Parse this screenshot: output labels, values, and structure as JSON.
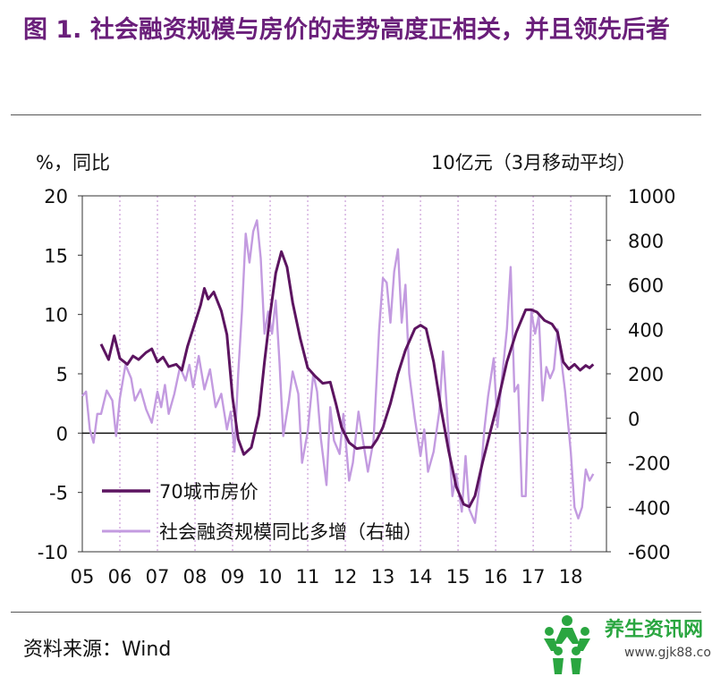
{
  "header": {
    "title": "图 1. 社会融资规模与房价的走势高度正相关，并且领先后者"
  },
  "chart_data": {
    "type": "line",
    "left_unit": "%，同比",
    "right_unit": "10亿元（3月移动平均）",
    "x_ticks": [
      "05",
      "06",
      "07",
      "08",
      "09",
      "10",
      "11",
      "12",
      "13",
      "14",
      "15",
      "16",
      "17",
      "18"
    ],
    "y_left": {
      "min": -10,
      "max": 20,
      "ticks": [
        -10,
        -5,
        0,
        5,
        10,
        15,
        20
      ]
    },
    "y_right": {
      "min": -600,
      "max": 1000,
      "ticks": [
        -600,
        -400,
        -200,
        0,
        200,
        400,
        600,
        800,
        1000
      ]
    },
    "grid": "vertical dotted at each year",
    "legend": {
      "position": "bottom-left"
    },
    "series": [
      {
        "name": "70城市房价",
        "axis": "left",
        "color": "#5c1460",
        "points": [
          [
            2005.5,
            7.5
          ],
          [
            2005.7,
            6.2
          ],
          [
            2005.85,
            8.2
          ],
          [
            2006.0,
            6.3
          ],
          [
            2006.2,
            5.8
          ],
          [
            2006.35,
            6.5
          ],
          [
            2006.5,
            6.2
          ],
          [
            2006.7,
            6.8
          ],
          [
            2006.85,
            7.1
          ],
          [
            2007.0,
            6.0
          ],
          [
            2007.15,
            6.4
          ],
          [
            2007.3,
            5.6
          ],
          [
            2007.5,
            5.8
          ],
          [
            2007.65,
            5.3
          ],
          [
            2007.8,
            7.3
          ],
          [
            2008.0,
            9.3
          ],
          [
            2008.15,
            10.8
          ],
          [
            2008.25,
            12.2
          ],
          [
            2008.35,
            11.3
          ],
          [
            2008.5,
            11.9
          ],
          [
            2008.7,
            10.3
          ],
          [
            2008.85,
            8.3
          ],
          [
            2009.0,
            3.0
          ],
          [
            2009.15,
            -0.5
          ],
          [
            2009.3,
            -1.8
          ],
          [
            2009.5,
            -1.2
          ],
          [
            2009.7,
            1.5
          ],
          [
            2009.85,
            6.0
          ],
          [
            2010.0,
            10.0
          ],
          [
            2010.15,
            13.5
          ],
          [
            2010.3,
            15.3
          ],
          [
            2010.45,
            14.0
          ],
          [
            2010.6,
            11.0
          ],
          [
            2010.8,
            8.0
          ],
          [
            2011.0,
            5.5
          ],
          [
            2011.2,
            4.8
          ],
          [
            2011.4,
            4.2
          ],
          [
            2011.6,
            4.3
          ],
          [
            2011.75,
            2.5
          ],
          [
            2011.9,
            0.5
          ],
          [
            2012.1,
            -0.8
          ],
          [
            2012.3,
            -1.3
          ],
          [
            2012.5,
            -1.2
          ],
          [
            2012.7,
            -1.2
          ],
          [
            2012.85,
            -0.5
          ],
          [
            2013.0,
            0.5
          ],
          [
            2013.2,
            2.5
          ],
          [
            2013.4,
            5.0
          ],
          [
            2013.6,
            7.0
          ],
          [
            2013.85,
            8.8
          ],
          [
            2014.0,
            9.1
          ],
          [
            2014.15,
            8.8
          ],
          [
            2014.35,
            6.0
          ],
          [
            2014.55,
            2.0
          ],
          [
            2014.75,
            -1.5
          ],
          [
            2014.95,
            -4.5
          ],
          [
            2015.15,
            -6.0
          ],
          [
            2015.3,
            -6.2
          ],
          [
            2015.45,
            -5.3
          ],
          [
            2015.65,
            -2.5
          ],
          [
            2015.85,
            0.0
          ],
          [
            2016.05,
            2.5
          ],
          [
            2016.3,
            6.0
          ],
          [
            2016.55,
            8.5
          ],
          [
            2016.8,
            10.4
          ],
          [
            2016.95,
            10.4
          ],
          [
            2017.1,
            10.2
          ],
          [
            2017.3,
            9.5
          ],
          [
            2017.5,
            9.2
          ],
          [
            2017.65,
            8.5
          ],
          [
            2017.8,
            6.0
          ],
          [
            2017.95,
            5.4
          ],
          [
            2018.1,
            5.8
          ],
          [
            2018.25,
            5.3
          ],
          [
            2018.4,
            5.7
          ],
          [
            2018.5,
            5.5
          ],
          [
            2018.6,
            5.8
          ]
        ]
      },
      {
        "name": "社会融资规模同比多增（右轴）",
        "axis": "right",
        "color": "#c39be0",
        "points": [
          [
            2005.0,
            100
          ],
          [
            2005.1,
            120
          ],
          [
            2005.2,
            -50
          ],
          [
            2005.3,
            -110
          ],
          [
            2005.4,
            20
          ],
          [
            2005.5,
            20
          ],
          [
            2005.65,
            125
          ],
          [
            2005.8,
            80
          ],
          [
            2005.9,
            -80
          ],
          [
            2006.0,
            90
          ],
          [
            2006.15,
            240
          ],
          [
            2006.3,
            180
          ],
          [
            2006.4,
            80
          ],
          [
            2006.55,
            130
          ],
          [
            2006.7,
            40
          ],
          [
            2006.85,
            -20
          ],
          [
            2007.0,
            120
          ],
          [
            2007.1,
            50
          ],
          [
            2007.2,
            150
          ],
          [
            2007.3,
            20
          ],
          [
            2007.45,
            110
          ],
          [
            2007.6,
            230
          ],
          [
            2007.75,
            170
          ],
          [
            2007.85,
            240
          ],
          [
            2007.95,
            140
          ],
          [
            2008.1,
            280
          ],
          [
            2008.25,
            130
          ],
          [
            2008.4,
            220
          ],
          [
            2008.55,
            50
          ],
          [
            2008.7,
            110
          ],
          [
            2008.85,
            -50
          ],
          [
            2008.95,
            30
          ],
          [
            2009.05,
            -150
          ],
          [
            2009.15,
            200
          ],
          [
            2009.25,
            480
          ],
          [
            2009.35,
            830
          ],
          [
            2009.45,
            700
          ],
          [
            2009.55,
            840
          ],
          [
            2009.65,
            890
          ],
          [
            2009.75,
            720
          ],
          [
            2009.85,
            380
          ],
          [
            2009.95,
            480
          ],
          [
            2010.05,
            380
          ],
          [
            2010.15,
            530
          ],
          [
            2010.25,
            250
          ],
          [
            2010.35,
            -80
          ],
          [
            2010.5,
            80
          ],
          [
            2010.6,
            210
          ],
          [
            2010.75,
            110
          ],
          [
            2010.85,
            -200
          ],
          [
            2011.0,
            -60
          ],
          [
            2011.15,
            200
          ],
          [
            2011.25,
            120
          ],
          [
            2011.35,
            -90
          ],
          [
            2011.5,
            -300
          ],
          [
            2011.6,
            50
          ],
          [
            2011.7,
            -100
          ],
          [
            2011.85,
            -160
          ],
          [
            2011.95,
            20
          ],
          [
            2012.1,
            -280
          ],
          [
            2012.2,
            -200
          ],
          [
            2012.35,
            30
          ],
          [
            2012.45,
            -80
          ],
          [
            2012.6,
            -240
          ],
          [
            2012.75,
            -100
          ],
          [
            2012.9,
            400
          ],
          [
            2013.0,
            630
          ],
          [
            2013.1,
            610
          ],
          [
            2013.2,
            430
          ],
          [
            2013.3,
            660
          ],
          [
            2013.4,
            760
          ],
          [
            2013.5,
            430
          ],
          [
            2013.6,
            600
          ],
          [
            2013.7,
            200
          ],
          [
            2013.85,
            0
          ],
          [
            2014.0,
            -170
          ],
          [
            2014.1,
            -50
          ],
          [
            2014.2,
            -240
          ],
          [
            2014.35,
            -150
          ],
          [
            2014.5,
            30
          ],
          [
            2014.6,
            300
          ],
          [
            2014.7,
            50
          ],
          [
            2014.85,
            -350
          ],
          [
            2014.95,
            -250
          ],
          [
            2015.1,
            -420
          ],
          [
            2015.2,
            -170
          ],
          [
            2015.3,
            -410
          ],
          [
            2015.45,
            -470
          ],
          [
            2015.6,
            -260
          ],
          [
            2015.7,
            -50
          ],
          [
            2015.8,
            100
          ],
          [
            2015.95,
            270
          ],
          [
            2016.05,
            -40
          ],
          [
            2016.15,
            150
          ],
          [
            2016.3,
            400
          ],
          [
            2016.4,
            680
          ],
          [
            2016.5,
            120
          ],
          [
            2016.6,
            150
          ],
          [
            2016.7,
            -350
          ],
          [
            2016.8,
            -350
          ],
          [
            2016.95,
            480
          ],
          [
            2017.05,
            380
          ],
          [
            2017.15,
            460
          ],
          [
            2017.25,
            80
          ],
          [
            2017.35,
            230
          ],
          [
            2017.45,
            180
          ],
          [
            2017.55,
            220
          ],
          [
            2017.65,
            400
          ],
          [
            2017.75,
            260
          ],
          [
            2017.85,
            120
          ],
          [
            2018.0,
            -150
          ],
          [
            2018.1,
            -400
          ],
          [
            2018.2,
            -450
          ],
          [
            2018.3,
            -400
          ],
          [
            2018.4,
            -230
          ],
          [
            2018.5,
            -280
          ],
          [
            2018.6,
            -250
          ]
        ]
      }
    ]
  },
  "footer": {
    "source": "资料来源：Wind"
  },
  "watermark": {
    "brand": "养生资讯网",
    "url": "www.gjk88.com",
    "color": "#2aa640"
  }
}
